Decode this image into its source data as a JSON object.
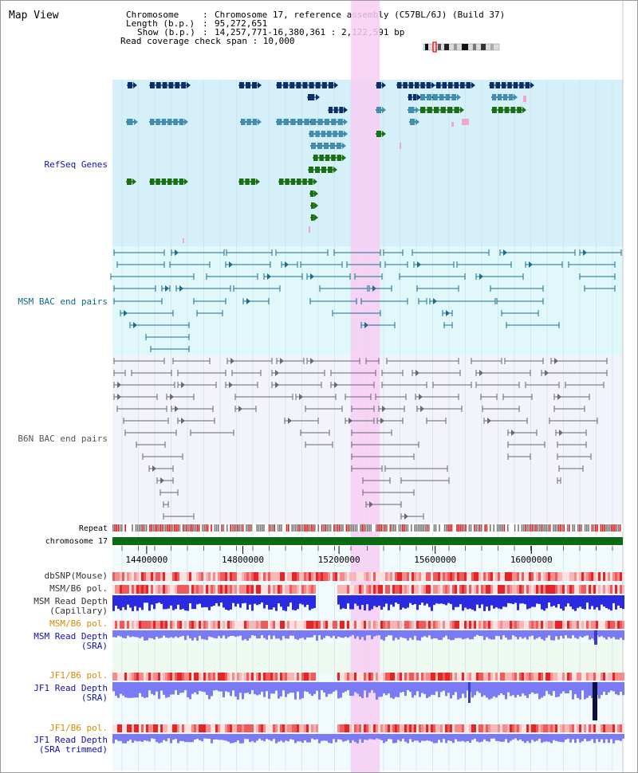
{
  "page": {
    "title": "Map View"
  },
  "header": {
    "rows": [
      {
        "key": "Chromosome",
        "sep": ":",
        "value": "Chromosome 17, reference assembly (C57BL/6J) (Build 37)"
      },
      {
        "key": "Length (b.p.)",
        "sep": ":",
        "value": "95,272,651"
      },
      {
        "key": "Show (b.p.)",
        "sep": ":",
        "value": "14,257,771-16,380,361 : 2,122,591 bp"
      }
    ],
    "span_label": "Read coverage check span : 10,000"
  },
  "region": {
    "start": 14257771,
    "end": 16380361,
    "highlight_start": 15250000,
    "highlight_end": 15370000
  },
  "axis": {
    "chromosome_label": "chromosome 17",
    "repeat_label": "Repeat",
    "ticks": [
      {
        "pos": 14400000,
        "label": "14400000"
      },
      {
        "pos": 14800000,
        "label": "14800000"
      },
      {
        "pos": 15200000,
        "label": "15200000"
      },
      {
        "pos": 15600000,
        "label": "15600000"
      },
      {
        "pos": 16000000,
        "label": "16000000"
      }
    ]
  },
  "tracks": {
    "refseq": {
      "label": "RefSeq Genes"
    },
    "msm_bac": {
      "label": "MSM BAC end pairs"
    },
    "b6n_bac": {
      "label": "B6N BAC end pairs"
    },
    "dbsnp": {
      "label": "dbSNP(Mouse)"
    },
    "msm_pol": {
      "label": "MSM/B6 pol."
    },
    "msm_cap": {
      "label1": "MSM Read Depth",
      "label2": "(Capillary)"
    },
    "msm_pol2": {
      "label": "MSM/B6 pol."
    },
    "msm_sra": {
      "label1": "MSM Read Depth",
      "label2": "(SRA)"
    },
    "jf1_pol": {
      "label": "JF1/B6 pol."
    },
    "jf1_sra": {
      "label1": "JF1 Read Depth",
      "label2": "(SRA)"
    },
    "jf1_pol2": {
      "label": "JF1/B6 pol."
    },
    "jf1_trim": {
      "label1": "JF1 Read Depth",
      "label2": "(SRA trimmed)"
    }
  },
  "colors": {
    "refseq_bg": "#d6f0fa",
    "msm_bg": "#e0f8fa",
    "b6n_bg": "#f3f3fb",
    "highlight": "#f7cdf3",
    "gene_dark": "#0b2f6b",
    "gene_mid": "#3f8fb3",
    "gene_green": "#15720f",
    "msm_pair": "#1a6e8c",
    "b6n_pair": "#6a6a6a",
    "chrom_bar": "#0a6b12",
    "depth_blue": "#2a2ae0",
    "depth_light": "#7a7af5",
    "label_blue": "#1010b0",
    "label_orange": "#d88a00",
    "label_teal": "#106a8a"
  }
}
